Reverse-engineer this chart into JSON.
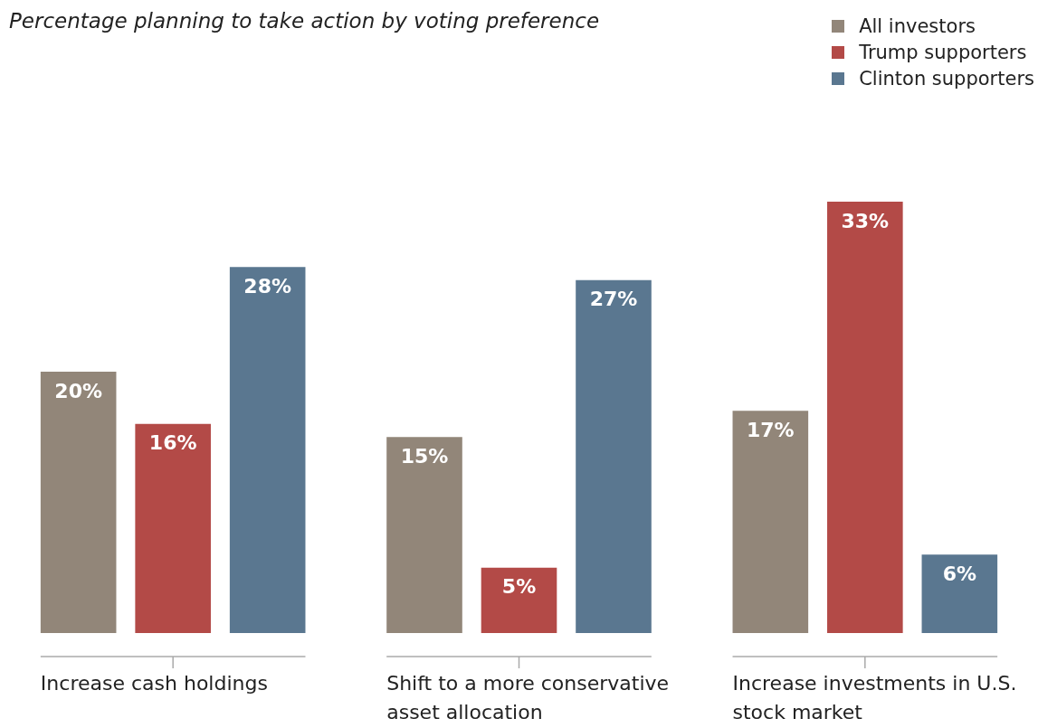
{
  "chart_data": {
    "type": "bar",
    "title": "Percentage planning to take action by voting preference",
    "categories": [
      "Increase cash holdings",
      "Shift to a more conservative asset allocation",
      "Increase investments in U.S. stock market"
    ],
    "series": [
      {
        "name": "All investors",
        "color": "#928679",
        "values": [
          20,
          15,
          17
        ],
        "value_labels": [
          "20%",
          "15%",
          "17%"
        ]
      },
      {
        "name": "Trump supporters",
        "color": "#b34a47",
        "values": [
          16,
          5,
          33
        ],
        "value_labels": [
          "16%",
          "5%",
          "33%"
        ]
      },
      {
        "name": "Clinton supporters",
        "color": "#5a7790",
        "values": [
          28,
          27,
          6
        ],
        "value_labels": [
          "28%",
          "27%",
          "6%"
        ]
      }
    ],
    "legend": "top right"
  }
}
